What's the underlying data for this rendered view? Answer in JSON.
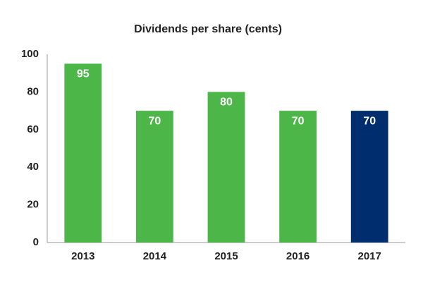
{
  "chart_data": {
    "type": "bar",
    "title": "Dividends per share (cents)",
    "categories": [
      "2013",
      "2014",
      "2015",
      "2016",
      "2017"
    ],
    "values": [
      95,
      70,
      80,
      70,
      70
    ],
    "colors": [
      "#4cb748",
      "#4cb748",
      "#4cb748",
      "#4cb748",
      "#002d6e"
    ],
    "ylim": [
      0,
      100
    ],
    "yticks": [
      0,
      20,
      40,
      60,
      80,
      100
    ],
    "grid": false
  }
}
